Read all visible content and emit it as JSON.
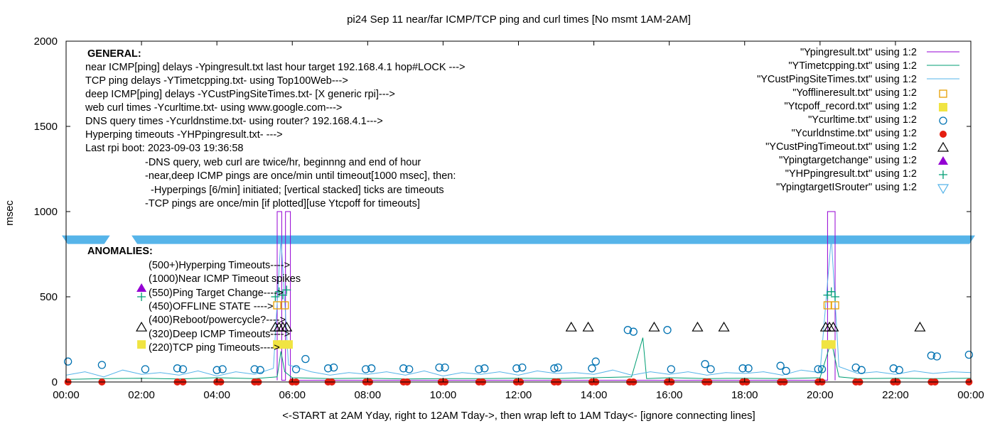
{
  "chart_data": {
    "type": "scatter",
    "title": "pi24 Sep 11  near/far ICMP/TCP ping and curl times [No msmt 1AM-2AM]",
    "xlabel": "<-START at 2AM Yday, right to 12AM Tday->, then wrap left to 1AM Tday<- [ignore connecting lines]",
    "ylabel": "msec",
    "xlim": [
      0,
      24
    ],
    "ylim": [
      0,
      2000
    ],
    "x_ticks": [
      "00:00",
      "02:00",
      "04:00",
      "06:00",
      "08:00",
      "10:00",
      "12:00",
      "14:00",
      "16:00",
      "18:00",
      "20:00",
      "22:00",
      "00:00"
    ],
    "y_ticks": [
      0,
      500,
      1000,
      1500,
      2000
    ],
    "grid": false,
    "legend_position": "top-right",
    "colors": {
      "purple": "#9400d3",
      "green": "#009e73",
      "cyan": "#56b4e9",
      "orange": "#e69f00",
      "yellow": "#f0e442",
      "blue": "#0072b2",
      "red": "#e51e10",
      "black": "#000000",
      "band": "#56b4e9"
    },
    "series": [
      {
        "name": "\"Ypingresult.txt\" using 1:2",
        "style": "line",
        "color": "purple",
        "points": [
          [
            5.6,
            10
          ],
          [
            5.6,
            1000
          ],
          [
            5.72,
            1000
          ],
          [
            5.72,
            10
          ],
          [
            5.82,
            10
          ],
          [
            5.82,
            1000
          ],
          [
            5.95,
            1000
          ],
          [
            5.95,
            10
          ],
          [
            20.2,
            10
          ],
          [
            20.2,
            1000
          ],
          [
            20.4,
            1000
          ],
          [
            20.4,
            10
          ]
        ]
      },
      {
        "name": "\"YTimetcpping.txt\" using 1:2",
        "style": "line",
        "color": "green",
        "points": [
          [
            0,
            15
          ],
          [
            1,
            20
          ],
          [
            2,
            22
          ],
          [
            3,
            18
          ],
          [
            4,
            25
          ],
          [
            5,
            20
          ],
          [
            5.6,
            30
          ],
          [
            5.7,
            180
          ],
          [
            5.8,
            60
          ],
          [
            6,
            25
          ],
          [
            7,
            20
          ],
          [
            8,
            22
          ],
          [
            9,
            18
          ],
          [
            10,
            20
          ],
          [
            11,
            20
          ],
          [
            12,
            22
          ],
          [
            13,
            20
          ],
          [
            14,
            25
          ],
          [
            15,
            30
          ],
          [
            15.3,
            260
          ],
          [
            15.4,
            20
          ],
          [
            16,
            25
          ],
          [
            17,
            20
          ],
          [
            18,
            22
          ],
          [
            19,
            20
          ],
          [
            20,
            25
          ],
          [
            20.3,
            240
          ],
          [
            20.5,
            30
          ],
          [
            21,
            20
          ],
          [
            22,
            22
          ],
          [
            23,
            20
          ],
          [
            24,
            22
          ]
        ]
      },
      {
        "name": "\"YCustPingSiteTimes.txt\" using 1:2",
        "style": "line",
        "color": "cyan",
        "points": [
          [
            0,
            40
          ],
          [
            0.5,
            60
          ],
          [
            1,
            30
          ],
          [
            1.5,
            70
          ],
          [
            2,
            45
          ],
          [
            2.5,
            55
          ],
          [
            3,
            40
          ],
          [
            3.5,
            65
          ],
          [
            4,
            35
          ],
          [
            4.5,
            60
          ],
          [
            5,
            45
          ],
          [
            5.5,
            80
          ],
          [
            5.7,
            850
          ],
          [
            5.9,
            100
          ],
          [
            6.5,
            60
          ],
          [
            7,
            40
          ],
          [
            7.5,
            55
          ],
          [
            8,
            45
          ],
          [
            8.5,
            60
          ],
          [
            9,
            40
          ],
          [
            9.5,
            65
          ],
          [
            10,
            35
          ],
          [
            10.5,
            55
          ],
          [
            11,
            45
          ],
          [
            11.5,
            60
          ],
          [
            12,
            40
          ],
          [
            12.5,
            65
          ],
          [
            13,
            50
          ],
          [
            13.5,
            55
          ],
          [
            14,
            45
          ],
          [
            14.5,
            70
          ],
          [
            15,
            40
          ],
          [
            15.5,
            60
          ],
          [
            16,
            45
          ],
          [
            16.5,
            60
          ],
          [
            17,
            40
          ],
          [
            17.5,
            55
          ],
          [
            18,
            50
          ],
          [
            18.5,
            60
          ],
          [
            19,
            40
          ],
          [
            19.5,
            70
          ],
          [
            20,
            55
          ],
          [
            20.3,
            850
          ],
          [
            20.5,
            90
          ],
          [
            21,
            50
          ],
          [
            21.5,
            60
          ],
          [
            22,
            45
          ],
          [
            22.5,
            65
          ],
          [
            23,
            50
          ],
          [
            23.5,
            60
          ],
          [
            24,
            55
          ]
        ]
      },
      {
        "name": "\"Yofflineresult.txt\" using 1:2",
        "style": "open-square",
        "color": "orange",
        "points": [
          [
            5.6,
            450
          ],
          [
            5.8,
            450
          ],
          [
            20.2,
            450
          ],
          [
            20.4,
            450
          ]
        ]
      },
      {
        "name": "\"Ytcpoff_record.txt\" using 1:2",
        "style": "filled-square",
        "color": "yellow",
        "points": [
          [
            2.0,
            220
          ],
          [
            5.6,
            220
          ],
          [
            5.75,
            220
          ],
          [
            5.9,
            220
          ],
          [
            20.15,
            220
          ],
          [
            20.3,
            220
          ]
        ]
      },
      {
        "name": "\"Ycurltime.txt\" using 1:2",
        "style": "open-circle",
        "color": "blue",
        "points": [
          [
            0.05,
            120
          ],
          [
            0.95,
            100
          ],
          [
            2.1,
            75
          ],
          [
            2.95,
            80
          ],
          [
            3.1,
            75
          ],
          [
            4.0,
            70
          ],
          [
            4.15,
            75
          ],
          [
            5.0,
            75
          ],
          [
            5.15,
            70
          ],
          [
            6.1,
            75
          ],
          [
            6.35,
            135
          ],
          [
            6.95,
            80
          ],
          [
            7.1,
            85
          ],
          [
            7.95,
            75
          ],
          [
            8.1,
            80
          ],
          [
            8.95,
            80
          ],
          [
            9.1,
            75
          ],
          [
            9.9,
            85
          ],
          [
            10.05,
            85
          ],
          [
            10.95,
            75
          ],
          [
            11.1,
            80
          ],
          [
            11.95,
            80
          ],
          [
            12.1,
            85
          ],
          [
            12.95,
            80
          ],
          [
            13.05,
            85
          ],
          [
            13.95,
            80
          ],
          [
            14.05,
            120
          ],
          [
            14.9,
            305
          ],
          [
            15.05,
            295
          ],
          [
            15.95,
            305
          ],
          [
            16.05,
            75
          ],
          [
            16.95,
            105
          ],
          [
            17.1,
            75
          ],
          [
            17.95,
            80
          ],
          [
            18.1,
            80
          ],
          [
            18.95,
            95
          ],
          [
            19.1,
            65
          ],
          [
            19.95,
            75
          ],
          [
            20.05,
            75
          ],
          [
            20.95,
            85
          ],
          [
            21.1,
            70
          ],
          [
            21.95,
            80
          ],
          [
            22.1,
            70
          ],
          [
            22.95,
            155
          ],
          [
            23.1,
            150
          ],
          [
            23.95,
            160
          ]
        ]
      },
      {
        "name": "\"Ycurldnstime.txt\" using 1:2",
        "style": "filled-circle",
        "color": "red",
        "points": [
          [
            0.05,
            0
          ],
          [
            0.95,
            0
          ],
          [
            2.95,
            0
          ],
          [
            3.1,
            0
          ],
          [
            4.0,
            0
          ],
          [
            4.1,
            0
          ],
          [
            5.0,
            0
          ],
          [
            5.1,
            0
          ],
          [
            6.0,
            0
          ],
          [
            6.1,
            0
          ],
          [
            6.95,
            0
          ],
          [
            7.05,
            0
          ],
          [
            7.95,
            0
          ],
          [
            8.05,
            0
          ],
          [
            8.95,
            0
          ],
          [
            9.05,
            0
          ],
          [
            9.95,
            0
          ],
          [
            10.05,
            0
          ],
          [
            10.95,
            0
          ],
          [
            11.05,
            0
          ],
          [
            11.95,
            0
          ],
          [
            12.05,
            0
          ],
          [
            12.95,
            0
          ],
          [
            13.05,
            0
          ],
          [
            13.95,
            0
          ],
          [
            14.05,
            0
          ],
          [
            14.95,
            0
          ],
          [
            15.05,
            0
          ],
          [
            15.95,
            0
          ],
          [
            16.05,
            0
          ],
          [
            16.95,
            0
          ],
          [
            17.05,
            0
          ],
          [
            17.95,
            0
          ],
          [
            18.05,
            0
          ],
          [
            18.95,
            0
          ],
          [
            19.05,
            0
          ],
          [
            19.95,
            0
          ],
          [
            20.05,
            0
          ],
          [
            20.95,
            0
          ],
          [
            21.05,
            0
          ],
          [
            21.95,
            0
          ],
          [
            22.05,
            0
          ],
          [
            22.95,
            0
          ],
          [
            23.05,
            0
          ],
          [
            23.95,
            0
          ]
        ]
      },
      {
        "name": "\"YCustPingTimeout.txt\" using 1:2",
        "style": "open-triangle",
        "color": "black",
        "points": [
          [
            2.0,
            320
          ],
          [
            5.55,
            320
          ],
          [
            5.65,
            320
          ],
          [
            5.75,
            320
          ],
          [
            5.85,
            320
          ],
          [
            13.4,
            320
          ],
          [
            13.85,
            320
          ],
          [
            15.6,
            320
          ],
          [
            16.75,
            320
          ],
          [
            17.45,
            320
          ],
          [
            20.15,
            320
          ],
          [
            20.25,
            320
          ],
          [
            20.35,
            320
          ],
          [
            22.65,
            320
          ]
        ]
      },
      {
        "name": "\"Ypingtargetchange\" using 1:2",
        "style": "filled-triangle",
        "color": "purple",
        "points": [
          [
            2.0,
            550
          ]
        ]
      },
      {
        "name": "\"YHPpingresult.txt\" using 1:2",
        "style": "plus",
        "color": "green",
        "points": [
          [
            2.0,
            500
          ],
          [
            5.55,
            500
          ],
          [
            5.65,
            530
          ],
          [
            5.75,
            510
          ],
          [
            5.85,
            540
          ],
          [
            20.2,
            510
          ],
          [
            20.3,
            530
          ],
          [
            20.4,
            500
          ]
        ]
      },
      {
        "name": "\"YpingtargetISrouter\" using 1:2",
        "style": "open-inv-triangle",
        "color": "cyan",
        "points": []
      }
    ],
    "band_y": 835,
    "band_gaps": [
      [
        1.05,
        1.85
      ]
    ],
    "annotations_general": {
      "heading": "GENERAL:",
      "lines": [
        "near ICMP[ping] delays -Ypingresult.txt last hour target 192.168.4.1 hop#LOCK --->",
        "TCP ping delays -YTimetcpping.txt- using Top100Web--->",
        "deep ICMP[ping] delays -YCustPingSiteTimes.txt- [X generic rpi]--->",
        "web curl times -Ycurltime.txt- using www.google.com--->",
        "DNS query times -Ycurldnstime.txt- using router? 192.168.4.1--->",
        "Hyperping timeouts -YHPpingresult.txt- --->",
        "Last rpi boot: 2023-09-03 19:36:58"
      ],
      "notes": [
        "-DNS query, web curl are twice/hr, beginnng and end of hour",
        "-near,deep ICMP pings are once/min until timeout[1000 msec], then:",
        "  -Hyperpings [6/min] initiated; [vertical stacked] ticks are timeouts",
        "-TCP pings are once/min [if plotted][use Ytcpoff for timeouts]"
      ]
    },
    "annotations_anomalies": {
      "heading": "ANOMALIES:",
      "lines": [
        "(500+)Hyperping Timeouts---->",
        "(1000)Near ICMP Timeout spikes",
        "(550)Ping Target Change---->",
        "(450)OFFLINE STATE ---->",
        "(400)Reboot/powercycle?---->",
        "(320)Deep ICMP Timeouts---->",
        "(220)TCP ping Timeouts---->"
      ]
    }
  }
}
